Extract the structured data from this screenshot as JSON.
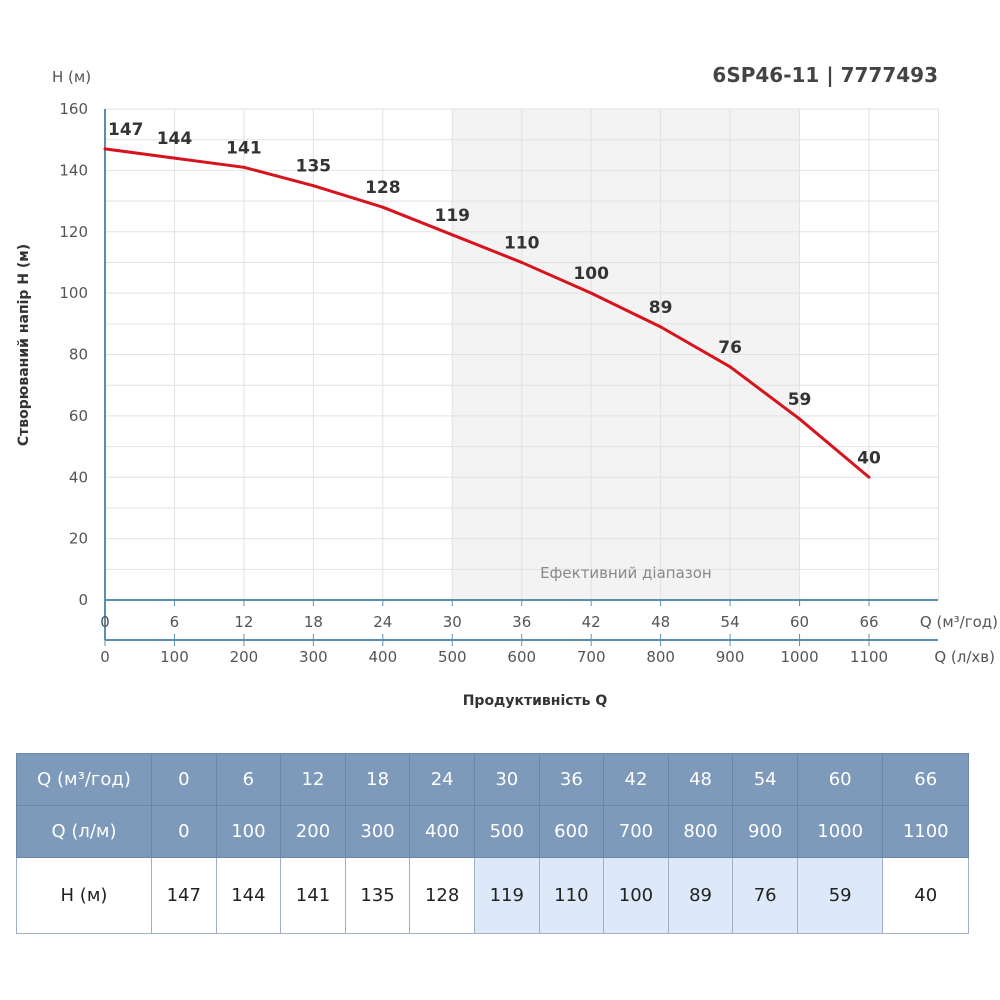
{
  "chart_data": {
    "type": "line",
    "title": "6SP46-11 | 7777493",
    "ylabel": "Створюваний напір H (м)",
    "yunit": "H (м)",
    "xlabel": "Продуктивність Q",
    "x_unit_primary": "Q (м³/год)",
    "x_unit_secondary": "Q (л/хв)",
    "x": [
      0,
      6,
      12,
      18,
      24,
      30,
      36,
      42,
      48,
      54,
      60,
      66
    ],
    "x_secondary": [
      0,
      100,
      200,
      300,
      400,
      500,
      600,
      700,
      800,
      900,
      1000,
      1100
    ],
    "y": [
      147,
      144,
      141,
      135,
      128,
      119,
      110,
      100,
      89,
      76,
      59,
      40
    ],
    "ylim": [
      0,
      160
    ],
    "yticks": [
      0,
      20,
      40,
      60,
      80,
      100,
      120,
      140,
      160
    ],
    "xlim": [
      0,
      72
    ],
    "grid": true,
    "efficient_range": {
      "from": 30,
      "to": 60,
      "label": "Ефективний діапазон"
    },
    "line_color": "#d7141e",
    "shade_color": "#f3f3f3"
  },
  "table": {
    "row1_label": "Q (м³/год)",
    "row2_label": "Q (л/м)",
    "row3_label": "H (м)",
    "q_m3": [
      "0",
      "6",
      "12",
      "18",
      "24",
      "30",
      "36",
      "42",
      "48",
      "54",
      "60",
      "66"
    ],
    "q_l": [
      "0",
      "100",
      "200",
      "300",
      "400",
      "500",
      "600",
      "700",
      "800",
      "900",
      "1000",
      "1100"
    ],
    "h": [
      "147",
      "144",
      "141",
      "135",
      "128",
      "119",
      "110",
      "100",
      "89",
      "76",
      "59",
      "40"
    ],
    "highlight": [
      false,
      false,
      false,
      false,
      false,
      true,
      true,
      true,
      true,
      true,
      true,
      false
    ],
    "header_color": "#7d9aba",
    "highlight_color": "#dde9f8"
  }
}
